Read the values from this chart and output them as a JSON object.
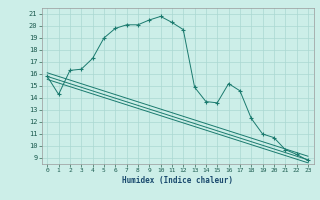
{
  "xlabel": "Humidex (Indice chaleur)",
  "bg_color": "#cceee8",
  "grid_color": "#aad8d2",
  "line_color": "#1a7a6e",
  "xlim": [
    -0.5,
    23.5
  ],
  "ylim": [
    8.5,
    21.5
  ],
  "xticks": [
    0,
    1,
    2,
    3,
    4,
    5,
    6,
    7,
    8,
    9,
    10,
    11,
    12,
    13,
    14,
    15,
    16,
    17,
    18,
    19,
    20,
    21,
    22,
    23
  ],
  "yticks": [
    9,
    10,
    11,
    12,
    13,
    14,
    15,
    16,
    17,
    18,
    19,
    20,
    21
  ],
  "main_line_x": [
    0,
    1,
    2,
    3,
    4,
    5,
    6,
    7,
    8,
    9,
    10,
    11,
    12,
    13,
    14,
    15,
    16,
    17,
    18,
    19,
    20,
    21,
    22,
    23
  ],
  "main_line_y": [
    15.8,
    14.3,
    16.3,
    16.4,
    17.3,
    19.0,
    19.8,
    20.1,
    20.1,
    20.5,
    20.8,
    20.3,
    19.7,
    14.9,
    13.7,
    13.6,
    15.2,
    14.6,
    12.3,
    11.0,
    10.7,
    9.7,
    9.3,
    8.8
  ],
  "reg_lines": [
    {
      "x0": 0,
      "y0": 16.1,
      "x1": 23,
      "y1": 9.15
    },
    {
      "x0": 0,
      "y0": 15.8,
      "x1": 23,
      "y1": 8.85
    },
    {
      "x0": 0,
      "y0": 15.55,
      "x1": 23,
      "y1": 8.6
    }
  ]
}
